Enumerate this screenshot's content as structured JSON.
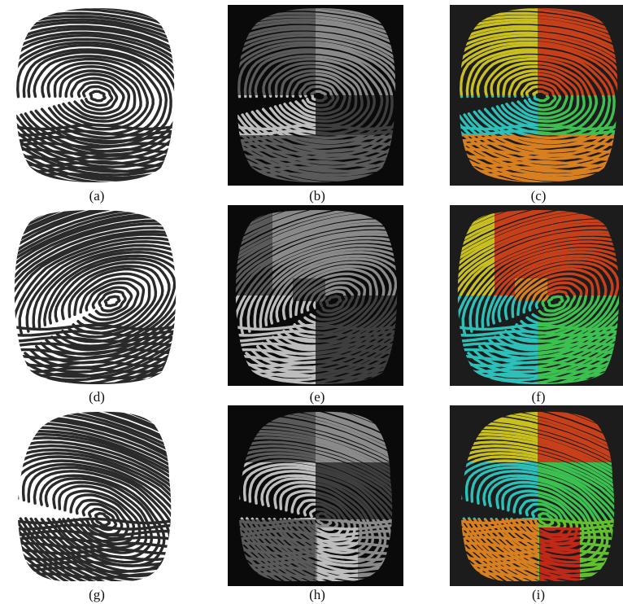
{
  "figure": {
    "rows": [
      {
        "panels": [
          {
            "caption": "(a)",
            "style": "ink"
          },
          {
            "caption": "(b)",
            "style": "gray"
          },
          {
            "caption": "(c)",
            "style": "color"
          }
        ]
      },
      {
        "panels": [
          {
            "caption": "(d)",
            "style": "ink"
          },
          {
            "caption": "(e)",
            "style": "gray"
          },
          {
            "caption": "(f)",
            "style": "color"
          }
        ]
      },
      {
        "panels": [
          {
            "caption": "(g)",
            "style": "ink"
          },
          {
            "caption": "(h)",
            "style": "gray"
          },
          {
            "caption": "(i)",
            "style": "color"
          }
        ]
      }
    ],
    "colors": {
      "ink_ridge": "#2a2a2a",
      "dark_background": "#0a0a0a",
      "color_background": "#1c1c1c",
      "gray_levels": [
        "#5a5a5a",
        "#8a8a8a",
        "#bdbdbd",
        "#3e3e3e"
      ],
      "color_blocks": [
        "#c9c020",
        "#c8401a",
        "#2cc0b8",
        "#3cc050",
        "#d88020",
        "#60c030",
        "#c02818"
      ]
    }
  }
}
